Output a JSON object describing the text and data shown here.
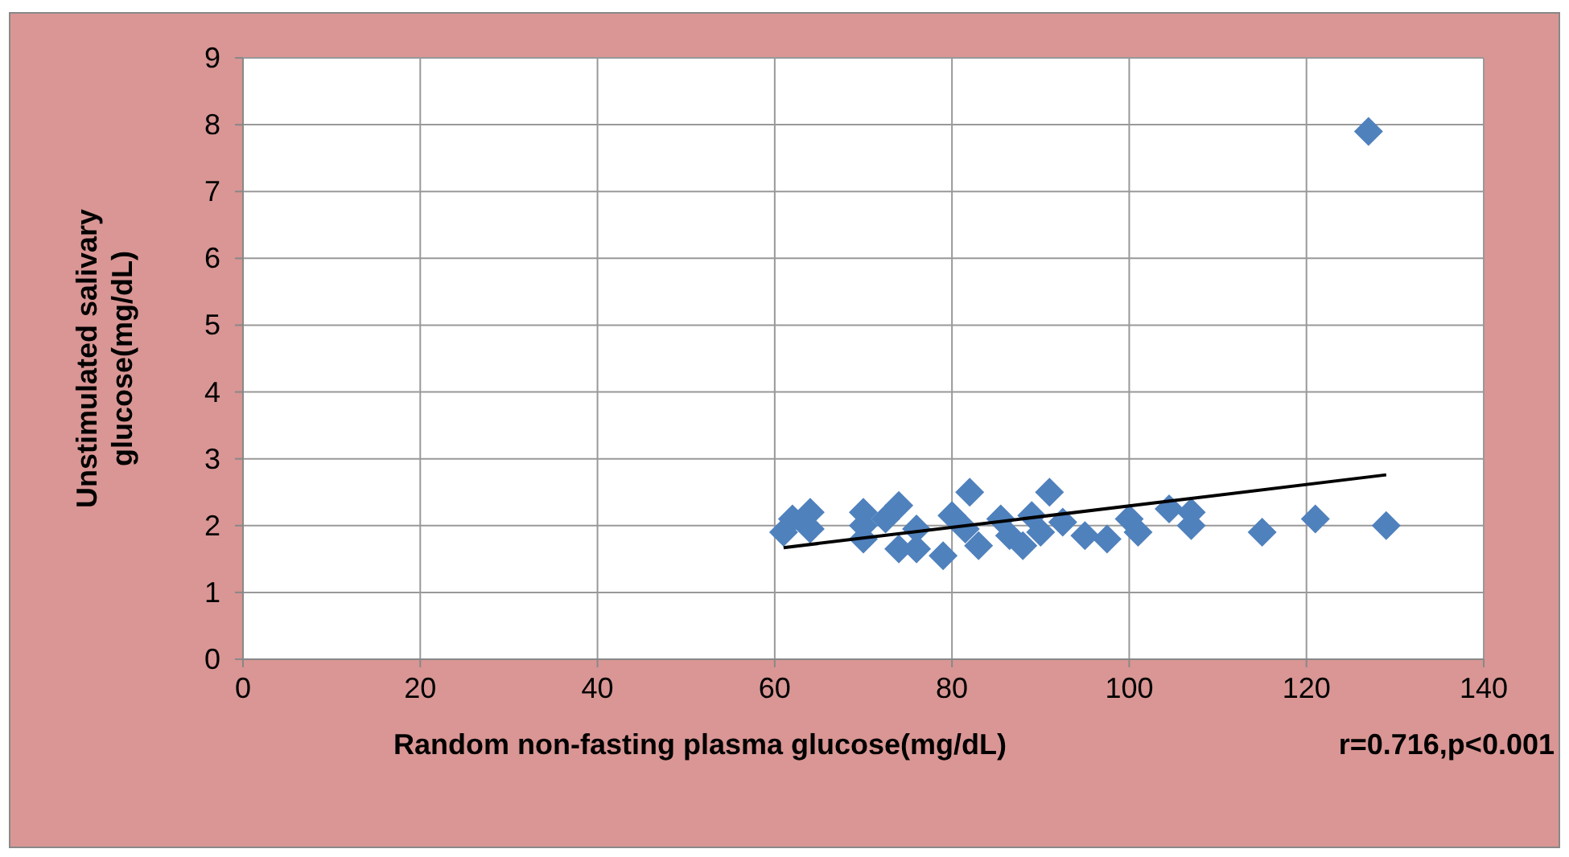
{
  "chart_data": {
    "type": "scatter",
    "xlabel": "Random non-fasting plasma glucose(mg/dL)",
    "ylabel": "Unstimulated salivary glucose(mg/dL)",
    "annotations": [
      "r=0.716,p<0.001"
    ],
    "xlim": [
      0,
      140
    ],
    "xticks": [
      0,
      20,
      40,
      60,
      80,
      100,
      120,
      140
    ],
    "ylim": [
      0,
      9
    ],
    "yticks": [
      0,
      1,
      2,
      3,
      4,
      5,
      6,
      7,
      8,
      9
    ],
    "grid": true,
    "series": [
      {
        "marker": "diamond",
        "color": "#4f81bd",
        "x": [
          61,
          62,
          64,
          64,
          70,
          70,
          70,
          72.5,
          74,
          74,
          76,
          76,
          79,
          80,
          81.5,
          82,
          83,
          85.5,
          86.5,
          88,
          89,
          90,
          91,
          92.5,
          95,
          97.5,
          100,
          101,
          104.5,
          107,
          107,
          115,
          121,
          127,
          129
        ],
        "values": [
          1.9,
          2.1,
          2.2,
          1.95,
          2.2,
          1.8,
          2,
          2.1,
          2.3,
          1.65,
          1.65,
          1.95,
          1.55,
          2.15,
          1.95,
          2.5,
          1.7,
          2.1,
          1.85,
          1.7,
          2.15,
          1.9,
          2.5,
          2.05,
          1.85,
          1.8,
          2.1,
          1.9,
          2.25,
          2.2,
          2,
          1.9,
          2.1,
          7.9,
          2
        ]
      },
      {
        "type": "line",
        "color": "#000000",
        "x": [
          61,
          129
        ],
        "values": [
          1.67,
          2.76
        ]
      }
    ]
  }
}
